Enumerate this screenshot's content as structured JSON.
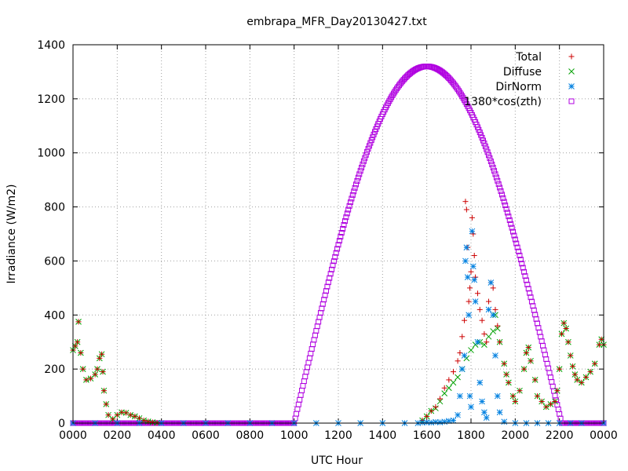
{
  "chart_data": {
    "type": "scatter",
    "title": "embrapa_MFR_Day20130427.txt",
    "xlabel": "UTC Hour",
    "ylabel": "Irradiance (W/m2)",
    "xlim": [
      0,
      24
    ],
    "ylim": [
      0,
      1400
    ],
    "grid": true,
    "legend_position": "top-right",
    "x_ticks": [
      {
        "value": 0,
        "label": "0000"
      },
      {
        "value": 2,
        "label": "0200"
      },
      {
        "value": 4,
        "label": "0400"
      },
      {
        "value": 6,
        "label": "0600"
      },
      {
        "value": 8,
        "label": "0800"
      },
      {
        "value": 10,
        "label": "1000"
      },
      {
        "value": 12,
        "label": "1200"
      },
      {
        "value": 14,
        "label": "1400"
      },
      {
        "value": 16,
        "label": "1600"
      },
      {
        "value": 18,
        "label": "1800"
      },
      {
        "value": 20,
        "label": "2000"
      },
      {
        "value": 22,
        "label": "2200"
      },
      {
        "value": 24,
        "label": "0000"
      }
    ],
    "y_ticks": [
      {
        "value": 0,
        "label": "0"
      },
      {
        "value": 200,
        "label": "200"
      },
      {
        "value": 400,
        "label": "400"
      },
      {
        "value": 600,
        "label": "600"
      },
      {
        "value": 800,
        "label": "800"
      },
      {
        "value": 1000,
        "label": "1000"
      },
      {
        "value": 1200,
        "label": "1200"
      },
      {
        "value": 1400,
        "label": "1400"
      }
    ],
    "series": [
      {
        "name": "Total",
        "marker": "plus",
        "color": "#cc0000",
        "points": [
          [
            0.0,
            270
          ],
          [
            0.1,
            285
          ],
          [
            0.2,
            300
          ],
          [
            0.25,
            375
          ],
          [
            0.35,
            260
          ],
          [
            0.45,
            200
          ],
          [
            0.6,
            160
          ],
          [
            0.8,
            165
          ],
          [
            1.0,
            180
          ],
          [
            1.1,
            200
          ],
          [
            1.2,
            240
          ],
          [
            1.3,
            255
          ],
          [
            1.35,
            190
          ],
          [
            1.4,
            120
          ],
          [
            1.5,
            70
          ],
          [
            1.6,
            30
          ],
          [
            1.8,
            15
          ],
          [
            2.0,
            30
          ],
          [
            2.2,
            40
          ],
          [
            2.4,
            38
          ],
          [
            2.6,
            30
          ],
          [
            2.8,
            25
          ],
          [
            3.0,
            18
          ],
          [
            3.2,
            10
          ],
          [
            3.4,
            6
          ],
          [
            3.6,
            3
          ],
          [
            3.8,
            1
          ],
          [
            15.8,
            10
          ],
          [
            16.0,
            25
          ],
          [
            16.2,
            45
          ],
          [
            16.4,
            60
          ],
          [
            16.6,
            90
          ],
          [
            16.8,
            130
          ],
          [
            17.0,
            160
          ],
          [
            17.2,
            190
          ],
          [
            17.4,
            230
          ],
          [
            17.5,
            260
          ],
          [
            17.6,
            320
          ],
          [
            17.7,
            380
          ],
          [
            17.75,
            820
          ],
          [
            17.8,
            790
          ],
          [
            17.85,
            650
          ],
          [
            17.9,
            450
          ],
          [
            17.95,
            500
          ],
          [
            18.0,
            560
          ],
          [
            18.05,
            760
          ],
          [
            18.1,
            700
          ],
          [
            18.15,
            620
          ],
          [
            18.2,
            540
          ],
          [
            18.3,
            480
          ],
          [
            18.4,
            420
          ],
          [
            18.5,
            380
          ],
          [
            18.6,
            330
          ],
          [
            18.7,
            300
          ],
          [
            18.8,
            450
          ],
          [
            18.9,
            520
          ],
          [
            19.0,
            500
          ],
          [
            19.1,
            420
          ],
          [
            19.2,
            360
          ],
          [
            19.3,
            300
          ],
          [
            19.5,
            220
          ],
          [
            19.6,
            180
          ],
          [
            19.7,
            150
          ],
          [
            19.9,
            100
          ],
          [
            20.0,
            80
          ],
          [
            20.2,
            120
          ],
          [
            20.4,
            200
          ],
          [
            20.5,
            260
          ],
          [
            20.6,
            280
          ],
          [
            20.7,
            230
          ],
          [
            20.9,
            160
          ],
          [
            21.0,
            100
          ],
          [
            21.2,
            80
          ],
          [
            21.4,
            60
          ],
          [
            21.6,
            70
          ],
          [
            21.8,
            80
          ],
          [
            21.9,
            120
          ],
          [
            22.0,
            200
          ],
          [
            22.1,
            330
          ],
          [
            22.2,
            370
          ],
          [
            22.3,
            350
          ],
          [
            22.4,
            300
          ],
          [
            22.5,
            250
          ],
          [
            22.6,
            210
          ],
          [
            22.7,
            180
          ],
          [
            22.8,
            160
          ],
          [
            23.0,
            150
          ],
          [
            23.2,
            170
          ],
          [
            23.4,
            190
          ],
          [
            23.6,
            220
          ],
          [
            23.8,
            290
          ],
          [
            23.9,
            310
          ],
          [
            24.0,
            290
          ]
        ]
      },
      {
        "name": "Diffuse",
        "marker": "cross",
        "color": "#00a000",
        "points": [
          [
            0.0,
            270
          ],
          [
            0.1,
            285
          ],
          [
            0.2,
            300
          ],
          [
            0.25,
            375
          ],
          [
            0.35,
            260
          ],
          [
            0.45,
            200
          ],
          [
            0.6,
            160
          ],
          [
            0.8,
            165
          ],
          [
            1.0,
            180
          ],
          [
            1.1,
            200
          ],
          [
            1.2,
            240
          ],
          [
            1.3,
            255
          ],
          [
            1.35,
            190
          ],
          [
            1.4,
            120
          ],
          [
            1.5,
            70
          ],
          [
            1.6,
            30
          ],
          [
            1.8,
            15
          ],
          [
            2.0,
            30
          ],
          [
            2.2,
            40
          ],
          [
            2.4,
            38
          ],
          [
            2.6,
            30
          ],
          [
            2.8,
            25
          ],
          [
            3.0,
            18
          ],
          [
            3.2,
            10
          ],
          [
            3.4,
            6
          ],
          [
            3.6,
            3
          ],
          [
            3.8,
            1
          ],
          [
            15.8,
            10
          ],
          [
            16.0,
            25
          ],
          [
            16.2,
            45
          ],
          [
            16.4,
            55
          ],
          [
            16.6,
            80
          ],
          [
            16.8,
            110
          ],
          [
            17.0,
            130
          ],
          [
            17.2,
            150
          ],
          [
            17.4,
            170
          ],
          [
            17.6,
            200
          ],
          [
            17.8,
            240
          ],
          [
            18.0,
            270
          ],
          [
            18.2,
            290
          ],
          [
            18.4,
            300
          ],
          [
            18.6,
            290
          ],
          [
            18.8,
            320
          ],
          [
            19.0,
            340
          ],
          [
            19.1,
            400
          ],
          [
            19.2,
            350
          ],
          [
            19.3,
            300
          ],
          [
            19.5,
            220
          ],
          [
            19.6,
            180
          ],
          [
            19.7,
            150
          ],
          [
            19.9,
            100
          ],
          [
            20.0,
            80
          ],
          [
            20.2,
            120
          ],
          [
            20.4,
            200
          ],
          [
            20.5,
            260
          ],
          [
            20.6,
            280
          ],
          [
            20.7,
            230
          ],
          [
            20.9,
            160
          ],
          [
            21.0,
            100
          ],
          [
            21.2,
            80
          ],
          [
            21.4,
            60
          ],
          [
            21.6,
            70
          ],
          [
            21.8,
            80
          ],
          [
            21.9,
            120
          ],
          [
            22.0,
            200
          ],
          [
            22.1,
            330
          ],
          [
            22.2,
            370
          ],
          [
            22.3,
            350
          ],
          [
            22.4,
            300
          ],
          [
            22.5,
            250
          ],
          [
            22.6,
            210
          ],
          [
            22.7,
            180
          ],
          [
            22.8,
            160
          ],
          [
            23.0,
            150
          ],
          [
            23.2,
            170
          ],
          [
            23.4,
            190
          ],
          [
            23.6,
            220
          ],
          [
            23.8,
            290
          ],
          [
            23.9,
            310
          ],
          [
            24.0,
            290
          ]
        ]
      },
      {
        "name": "DirNorm",
        "marker": "star",
        "color": "#0080e0",
        "points": [
          [
            0.0,
            0
          ],
          [
            1.0,
            0
          ],
          [
            2.0,
            0
          ],
          [
            3.0,
            0
          ],
          [
            4.0,
            0
          ],
          [
            5.0,
            0
          ],
          [
            6.0,
            0
          ],
          [
            7.0,
            0
          ],
          [
            8.0,
            0
          ],
          [
            9.0,
            0
          ],
          [
            10.0,
            0
          ],
          [
            11.0,
            0
          ],
          [
            12.0,
            0
          ],
          [
            13.0,
            0
          ],
          [
            14.0,
            0
          ],
          [
            15.0,
            0
          ],
          [
            15.6,
            0
          ],
          [
            15.8,
            2
          ],
          [
            16.0,
            3
          ],
          [
            16.2,
            2
          ],
          [
            16.4,
            4
          ],
          [
            16.6,
            3
          ],
          [
            16.8,
            5
          ],
          [
            17.0,
            8
          ],
          [
            17.2,
            10
          ],
          [
            17.4,
            30
          ],
          [
            17.5,
            100
          ],
          [
            17.6,
            200
          ],
          [
            17.7,
            250
          ],
          [
            17.75,
            600
          ],
          [
            17.8,
            650
          ],
          [
            17.85,
            540
          ],
          [
            17.9,
            400
          ],
          [
            17.95,
            100
          ],
          [
            18.0,
            60
          ],
          [
            18.05,
            710
          ],
          [
            18.1,
            580
          ],
          [
            18.15,
            530
          ],
          [
            18.2,
            450
          ],
          [
            18.3,
            300
          ],
          [
            18.4,
            150
          ],
          [
            18.5,
            80
          ],
          [
            18.6,
            40
          ],
          [
            18.7,
            20
          ],
          [
            18.8,
            420
          ],
          [
            18.9,
            520
          ],
          [
            19.0,
            400
          ],
          [
            19.1,
            250
          ],
          [
            19.2,
            100
          ],
          [
            19.3,
            40
          ],
          [
            19.5,
            5
          ],
          [
            20.0,
            0
          ],
          [
            20.5,
            0
          ],
          [
            21.0,
            0
          ],
          [
            21.5,
            0
          ],
          [
            22.0,
            0
          ],
          [
            22.5,
            0
          ],
          [
            23.0,
            0
          ],
          [
            24.0,
            0
          ]
        ]
      }
    ],
    "curve": {
      "name": "1380*cos(zth)",
      "marker": "square",
      "color": "#b000e0",
      "sunrise_hour": 10.0,
      "sunset_hour": 22.1,
      "peak_hour": 16.0,
      "peak_value": 1320,
      "step_hours": 0.05
    }
  }
}
